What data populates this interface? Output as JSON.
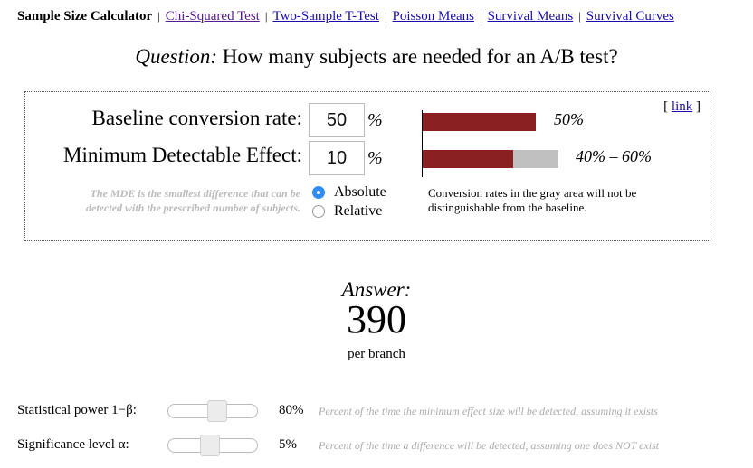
{
  "nav": {
    "current": "Sample Size Calculator",
    "links": [
      "Chi-Squared Test",
      "Two-Sample T-Test",
      "Poisson Means",
      "Survival Means",
      "Survival Curves"
    ]
  },
  "question": {
    "label": "Question:",
    "text": "How many subjects are needed for an A/B test?"
  },
  "inputs": {
    "baseline_label": "Baseline conversion rate:",
    "baseline_value": "50",
    "mde_label": "Minimum Detectable Effect:",
    "mde_value": "10",
    "percent_symbol": "%",
    "mde_note": "The MDE is the smallest difference that can be detected with the prescribed number of subjects.",
    "mde_mode": {
      "options": [
        "Absolute",
        "Relative"
      ],
      "selected": "Absolute"
    }
  },
  "visual": {
    "baseline_bar_label": "50%",
    "range_bar_label": "40% – 60%",
    "gray_note": "Conversion rates in the gray area will not be distinguishable from the baseline.",
    "link_text": "link",
    "link_open": "[ ",
    "link_close": " ]",
    "bar_red_color": "#8b2023",
    "bar_gray_color": "#c0c0c0",
    "baseline_rate": 0.5,
    "range_low": 0.4,
    "range_high": 0.6
  },
  "answer": {
    "label": "Answer:",
    "value": "390",
    "unit": "per branch"
  },
  "params": [
    {
      "label": "Statistical power 1−β:",
      "value": "80%",
      "level": 0.8,
      "description": "Percent of the time the minimum effect size will be detected, assuming it exists"
    },
    {
      "label": "Significance level α:",
      "value": "5%",
      "level": 0.05,
      "description": "Percent of the time a difference will be detected, assuming one does NOT exist"
    }
  ],
  "colors": {
    "link": "#1a0dab",
    "visited_link": "#551a8b",
    "radio_selected": "#2f8cf6",
    "muted_text": "#aaaaaa"
  }
}
